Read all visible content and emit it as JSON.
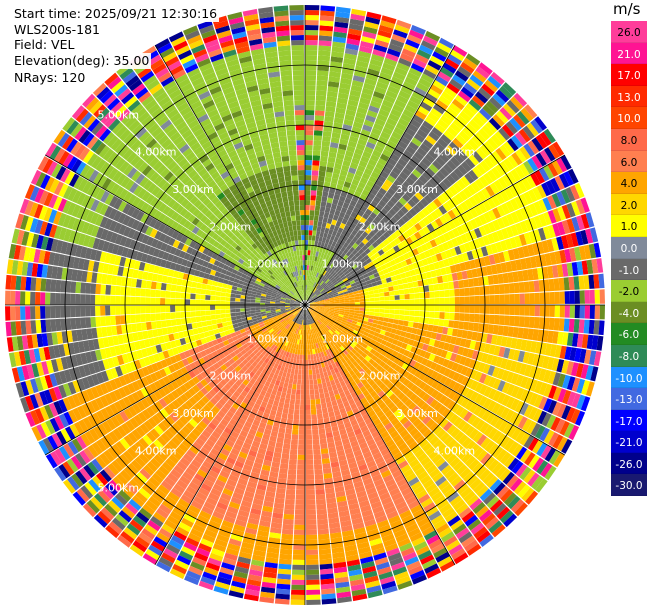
{
  "header": {
    "start_time": "Start time: 2025/09/21 12:30:16",
    "instrument": "WLS200s-181",
    "field": "Field: VEL",
    "elevation": "Elevation(deg): 35.00",
    "nrays": "NRays: 120"
  },
  "colorbar": {
    "unit": "m/s",
    "labels": [
      "26.0",
      "21.0",
      "17.0",
      "13.0",
      "10.0",
      "8.0",
      "6.0",
      "4.0",
      "2.0",
      "1.0",
      "0.0",
      "-1.0",
      "-2.0",
      "-4.0",
      "-6.0",
      "-8.0",
      "-10.0",
      "-13.0",
      "-17.0",
      "-21.0",
      "-26.0",
      "-30.0"
    ],
    "colors": [
      "#ff3d9a",
      "#ff1493",
      "#ff0000",
      "#ff2a00",
      "#ff4500",
      "#ff6a4a",
      "#ff7f50",
      "#ffa500",
      "#ffd700",
      "#ffff00",
      "#808a9a",
      "#696969",
      "#9acd32",
      "#6b8e23",
      "#228b22",
      "#2e8b57",
      "#1e90ff",
      "#4169e1",
      "#0000ff",
      "#0000cd",
      "#00008b",
      "#191970"
    ]
  },
  "chart_data": {
    "type": "heatmap",
    "projection": "polar-ppi",
    "field": "VEL",
    "units": "m/s",
    "elevation_deg": 35.0,
    "nrays": 120,
    "range_max_km": 5.0,
    "range_ring_labels": [
      "1.00km",
      "2.00km",
      "3.00km",
      "4.00km",
      "5.00km"
    ],
    "range_rings_km": [
      1,
      2,
      3,
      4
    ],
    "spoke_angles_deg": [
      0,
      30,
      60,
      90,
      120,
      150,
      180,
      210,
      240,
      270,
      300,
      330
    ],
    "velocity_regimes": [
      {
        "sector": "north-west",
        "range_km": [
          0,
          4.5
        ],
        "value_m_s": -3.0
      },
      {
        "sector": "north (inner core)",
        "range_km": [
          1.0,
          2.0
        ],
        "value_m_s": -5.0
      },
      {
        "sector": "north-east",
        "range_km": [
          1.0,
          3.5
        ],
        "value_m_s": -1.5
      },
      {
        "sector": "east / south-east",
        "range_km": [
          0.3,
          4.3
        ],
        "value_m_s": 2.0
      },
      {
        "sector": "south",
        "range_km": [
          0.3,
          3.5
        ],
        "value_m_s": 5.0
      },
      {
        "sector": "west / south-west",
        "range_km": [
          1.5,
          3.5
        ],
        "value_m_s": 0.0
      },
      {
        "sector": "all (far range, noise)",
        "range_km": [
          4.3,
          5.0
        ],
        "value_m_s": "random"
      }
    ],
    "legend_placement": "right"
  }
}
